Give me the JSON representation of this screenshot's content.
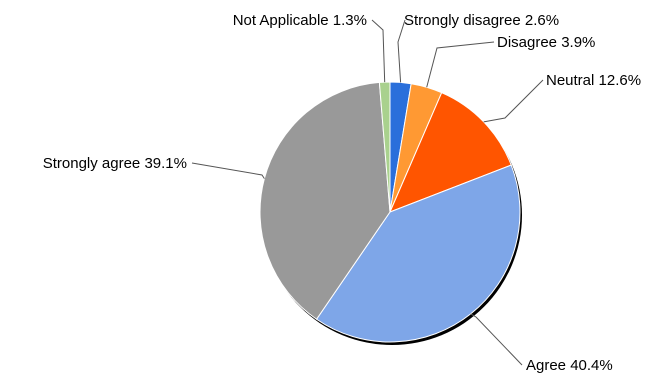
{
  "chart_data": {
    "type": "pie",
    "start_angle_deg": 0,
    "direction": "clockwise",
    "slices": [
      {
        "key": "strongly_disagree",
        "label": "Strongly disagree",
        "value": 2.6,
        "display": "2.6%",
        "color": "#2a6fdb"
      },
      {
        "key": "disagree",
        "label": "Disagree",
        "value": 3.9,
        "display": "3.9%",
        "color": "#ff9933"
      },
      {
        "key": "neutral",
        "label": "Neutral",
        "value": 12.6,
        "display": "12.6%",
        "color": "#ff5500"
      },
      {
        "key": "agree",
        "label": "Agree",
        "value": 40.4,
        "display": "40.4%",
        "color": "#7ea6e8"
      },
      {
        "key": "strongly_agree",
        "label": "Strongly agree",
        "value": 39.1,
        "display": "39.1%",
        "color": "#999999"
      },
      {
        "key": "not_applicable",
        "label": "Not Applicable",
        "value": 1.3,
        "display": "1.3%",
        "color": "#a9d18e"
      }
    ]
  }
}
